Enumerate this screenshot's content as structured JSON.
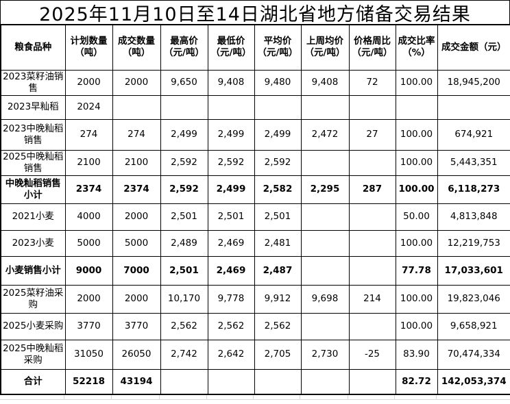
{
  "title": "2025年11月10日至14日湖北省地方储备交易结果",
  "table": {
    "columns": [
      "粮食品种",
      "计划数量\n（吨）",
      "成交数量\n（吨）",
      "最高价\n（元/吨）",
      "最低价\n（元/吨）",
      "平均价\n（元/吨）",
      "上周均价\n（元/吨）",
      "价格周比\n（元/吨）",
      "成交比率\n（%）",
      "成交金额（元）"
    ],
    "rows": [
      {
        "bold": false,
        "cells": [
          "2023菜籽油销售",
          "2000",
          "2000",
          "9,650",
          "9,408",
          "9,480",
          "9,408",
          "72",
          "100.00",
          "18,945,200"
        ]
      },
      {
        "bold": false,
        "cells": [
          "2023早籼稻",
          "2024",
          "",
          "",
          "",
          "",
          "",
          "",
          "",
          ""
        ]
      },
      {
        "bold": false,
        "cells": [
          "2023中晚籼稻销售",
          "274",
          "274",
          "2,499",
          "2,499",
          "2,499",
          "2,472",
          "27",
          "100.00",
          "674,921"
        ]
      },
      {
        "bold": false,
        "cells": [
          "2025中晚籼稻销售",
          "2100",
          "2100",
          "2,592",
          "2,592",
          "2,592",
          "",
          "",
          "100.00",
          "5,443,351"
        ]
      },
      {
        "bold": true,
        "cells": [
          "中晚籼稻销售小计",
          "2374",
          "2374",
          "2,592",
          "2,499",
          "2,582",
          "2,295",
          "287",
          "100.00",
          "6,118,273"
        ]
      },
      {
        "bold": false,
        "cells": [
          "2021小麦",
          "4000",
          "2000",
          "2,501",
          "2,501",
          "2,501",
          "",
          "",
          "50.00",
          "4,813,848"
        ]
      },
      {
        "bold": false,
        "cells": [
          "2023小麦",
          "5000",
          "5000",
          "2,489",
          "2,469",
          "2,481",
          "",
          "",
          "100.00",
          "12,219,753"
        ]
      },
      {
        "bold": true,
        "cells": [
          "小麦销售小计",
          "9000",
          "7000",
          "2,501",
          "2,469",
          "2,487",
          "",
          "",
          "77.78",
          "17,033,601"
        ]
      },
      {
        "bold": false,
        "cells": [
          "2025菜籽油采购",
          "2000",
          "2000",
          "10,170",
          "9,778",
          "9,912",
          "9,698",
          "214",
          "100.00",
          "19,823,046"
        ]
      },
      {
        "bold": false,
        "cells": [
          "2025小麦采购",
          "3770",
          "3770",
          "2,562",
          "2,562",
          "2,562",
          "",
          "",
          "100.00",
          "9,658,921"
        ]
      },
      {
        "bold": false,
        "cells": [
          "2025中晚籼稻采购",
          "31050",
          "26050",
          "2,742",
          "2,642",
          "2,705",
          "2,730",
          "-25",
          "83.90",
          "70,474,334"
        ]
      },
      {
        "bold": true,
        "cells": [
          "合计",
          "52218",
          "43194",
          "",
          "",
          "",
          "",
          "",
          "82.72",
          "142,053,374"
        ]
      }
    ]
  },
  "colors": {
    "border": "#000000",
    "text": "#000000",
    "background": "#ffffff",
    "faint_gridline": "#d9d9d9"
  }
}
